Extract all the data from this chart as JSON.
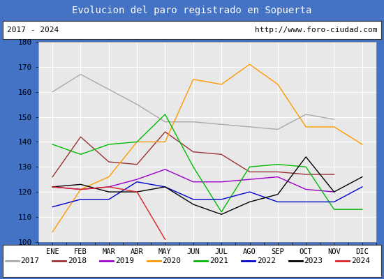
{
  "title": "Evolucion del paro registrado en Sopuerta",
  "title_color": "#ffffff",
  "title_bg": "#5b8dd9",
  "subtitle_left": "2017 - 2024",
  "subtitle_right": "http://www.foro-ciudad.com",
  "months": [
    "ENE",
    "FEB",
    "MAR",
    "ABR",
    "MAY",
    "JUN",
    "JUL",
    "AGO",
    "SEP",
    "OCT",
    "NOV",
    "DIC"
  ],
  "ylim": [
    100,
    180
  ],
  "yticks": [
    100,
    110,
    120,
    130,
    140,
    150,
    160,
    170,
    180
  ],
  "series": [
    {
      "year": "2017",
      "color": "#aaaaaa",
      "values": [
        160,
        167,
        161,
        155,
        148,
        148,
        147,
        146,
        145,
        151,
        149,
        null
      ]
    },
    {
      "year": "2018",
      "color": "#993333",
      "values": [
        126,
        142,
        132,
        131,
        144,
        136,
        135,
        128,
        128,
        127,
        127,
        null
      ]
    },
    {
      "year": "2019",
      "color": "#9900cc",
      "values": [
        122,
        121,
        122,
        125,
        129,
        124,
        124,
        125,
        126,
        121,
        120,
        null
      ]
    },
    {
      "year": "2020",
      "color": "#ff9900",
      "values": [
        104,
        121,
        126,
        140,
        140,
        165,
        163,
        171,
        163,
        146,
        146,
        139
      ]
    },
    {
      "year": "2021",
      "color": "#00bb00",
      "values": [
        139,
        135,
        139,
        140,
        151,
        130,
        112,
        130,
        131,
        130,
        113,
        113
      ]
    },
    {
      "year": "2022",
      "color": "#0000cc",
      "values": [
        114,
        117,
        117,
        124,
        122,
        117,
        117,
        120,
        116,
        116,
        116,
        122
      ]
    },
    {
      "year": "2023",
      "color": "#000000",
      "values": [
        122,
        123,
        120,
        120,
        122,
        115,
        111,
        116,
        119,
        134,
        120,
        126
      ]
    },
    {
      "year": "2024",
      "color": "#dd2222",
      "values": [
        122,
        121,
        122,
        120,
        101,
        null,
        null,
        null,
        null,
        null,
        null,
        null
      ]
    }
  ],
  "background_color": "#ffffff",
  "plot_bg": "#e8e8e8",
  "grid_color": "#ffffff",
  "border_color": "#4472c4",
  "legend_line_color": "#888888"
}
